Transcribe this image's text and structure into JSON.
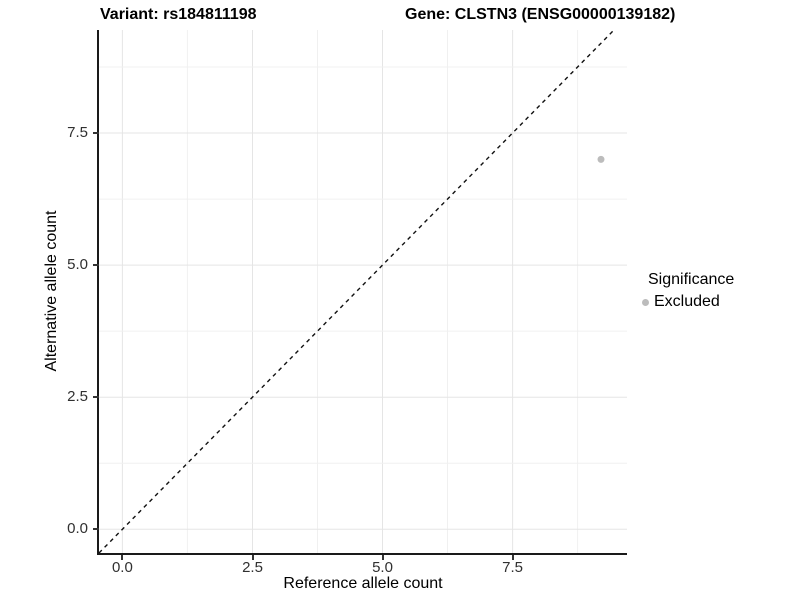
{
  "figure": {
    "titles": {
      "variant": "Variant: rs184811198",
      "gene": "Gene: CLSTN3 (ENSG00000139182)"
    }
  },
  "legend": {
    "title": "Significance",
    "items": [
      {
        "label": "Excluded",
        "color": "#bcbcbc"
      }
    ]
  },
  "chart_data": {
    "type": "scatter",
    "title_left": "Variant: rs184811198",
    "title_right": "Gene: CLSTN3 (ENSG00000139182)",
    "xlabel": "Reference allele count",
    "ylabel": "Alternative allele count",
    "x_ticks": [
      0.0,
      2.5,
      5.0,
      7.5
    ],
    "y_ticks": [
      0.0,
      2.5,
      5.0,
      7.5
    ],
    "x_tick_labels": [
      "0.0",
      "2.5",
      "5.0",
      "7.5"
    ],
    "y_tick_labels": [
      "0.0",
      "2.5",
      "5.0",
      "7.5"
    ],
    "xlim": [
      -0.45,
      9.7
    ],
    "ylim": [
      -0.45,
      9.45
    ],
    "minor_grid_step": 1.25,
    "major_grid_step": 2.5,
    "grid": "major+minor",
    "series": [
      {
        "name": "Excluded",
        "color": "#bcbcbc",
        "points": [
          {
            "x": 9.2,
            "y": 7.0
          }
        ]
      }
    ],
    "identity_line": {
      "slope": 1,
      "intercept": 0,
      "style": "dashed",
      "color": "#111111"
    },
    "legend_position": "right",
    "point_radius_px": 3.5,
    "colors": {
      "grid_major": "#e5e5e5",
      "grid_minor": "#f0f0f0",
      "axis_line": "#1a1a1a",
      "tick_text": "#303030",
      "background": "#ffffff"
    }
  }
}
